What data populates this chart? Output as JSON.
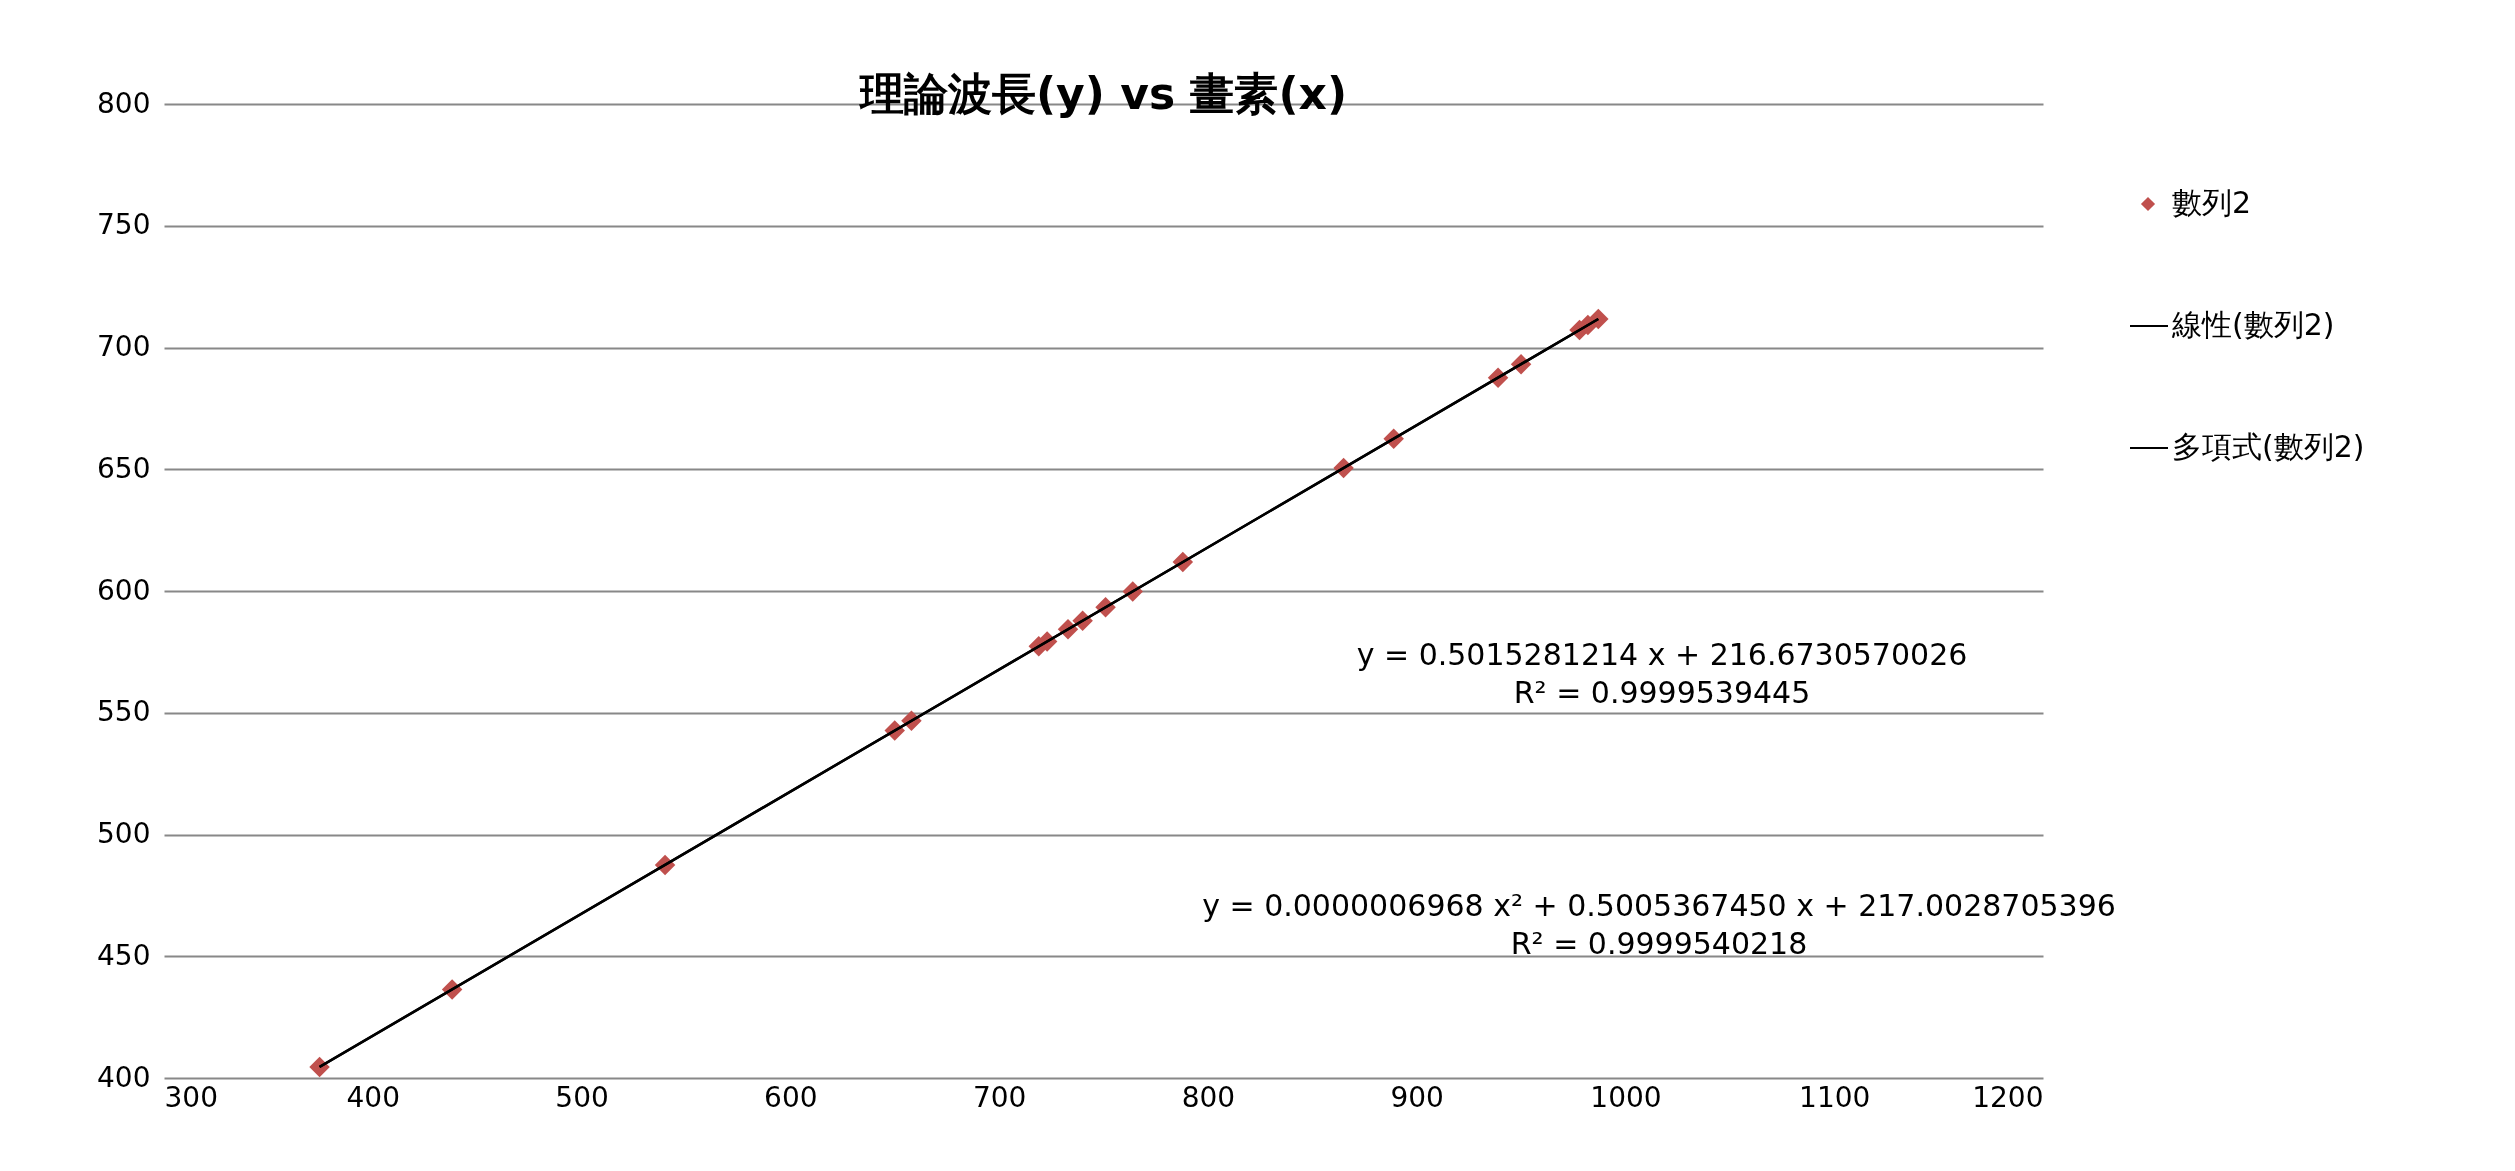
{
  "chart_data": {
    "type": "scatter",
    "title": "理論波長(y) vs 畫素(x)",
    "xlim": [
      300,
      1200
    ],
    "xticks": [
      300,
      400,
      500,
      600,
      700,
      800,
      900,
      1000,
      1100,
      1200
    ],
    "ylim": [
      400,
      800
    ],
    "yticks": [
      400,
      450,
      500,
      550,
      600,
      650,
      700,
      750,
      800
    ],
    "grid": "y",
    "legend": "right",
    "series": [
      {
        "name": "數列2",
        "marker": "diamond",
        "color": "#c0504d",
        "x": [
          374.5,
          438,
          540,
          650,
          658,
          719,
          723,
          733,
          740,
          751,
          764,
          788,
          865,
          889,
          939,
          950,
          978,
          982,
          987
        ],
        "values": [
          404.5,
          436.3,
          487.5,
          542.7,
          546.7,
          577.3,
          579.3,
          584.3,
          587.8,
          593.3,
          599.8,
          611.9,
          650.5,
          662.5,
          687.6,
          693.1,
          707.2,
          709.2,
          711.7
        ]
      },
      {
        "name": "線性(數列2)",
        "type": "line",
        "marker": "none",
        "color": "#000000",
        "x": [
          374.5,
          987
        ],
        "values": [
          404.5,
          711.7
        ]
      },
      {
        "name": "多項式(數列2)",
        "type": "line",
        "marker": "none",
        "color": "#000000",
        "x": [
          374.5,
          680,
          987
        ],
        "values": [
          404.6,
          557.7,
          711.7
        ]
      }
    ],
    "annotations": [
      "y = 0.5015281214 x + 216.6730570026\nR² = 0.9999539445",
      "y = 0.0000006968 x² + 0.5005367450 x + 217.0028705396\nR² = 0.9999540218"
    ]
  }
}
